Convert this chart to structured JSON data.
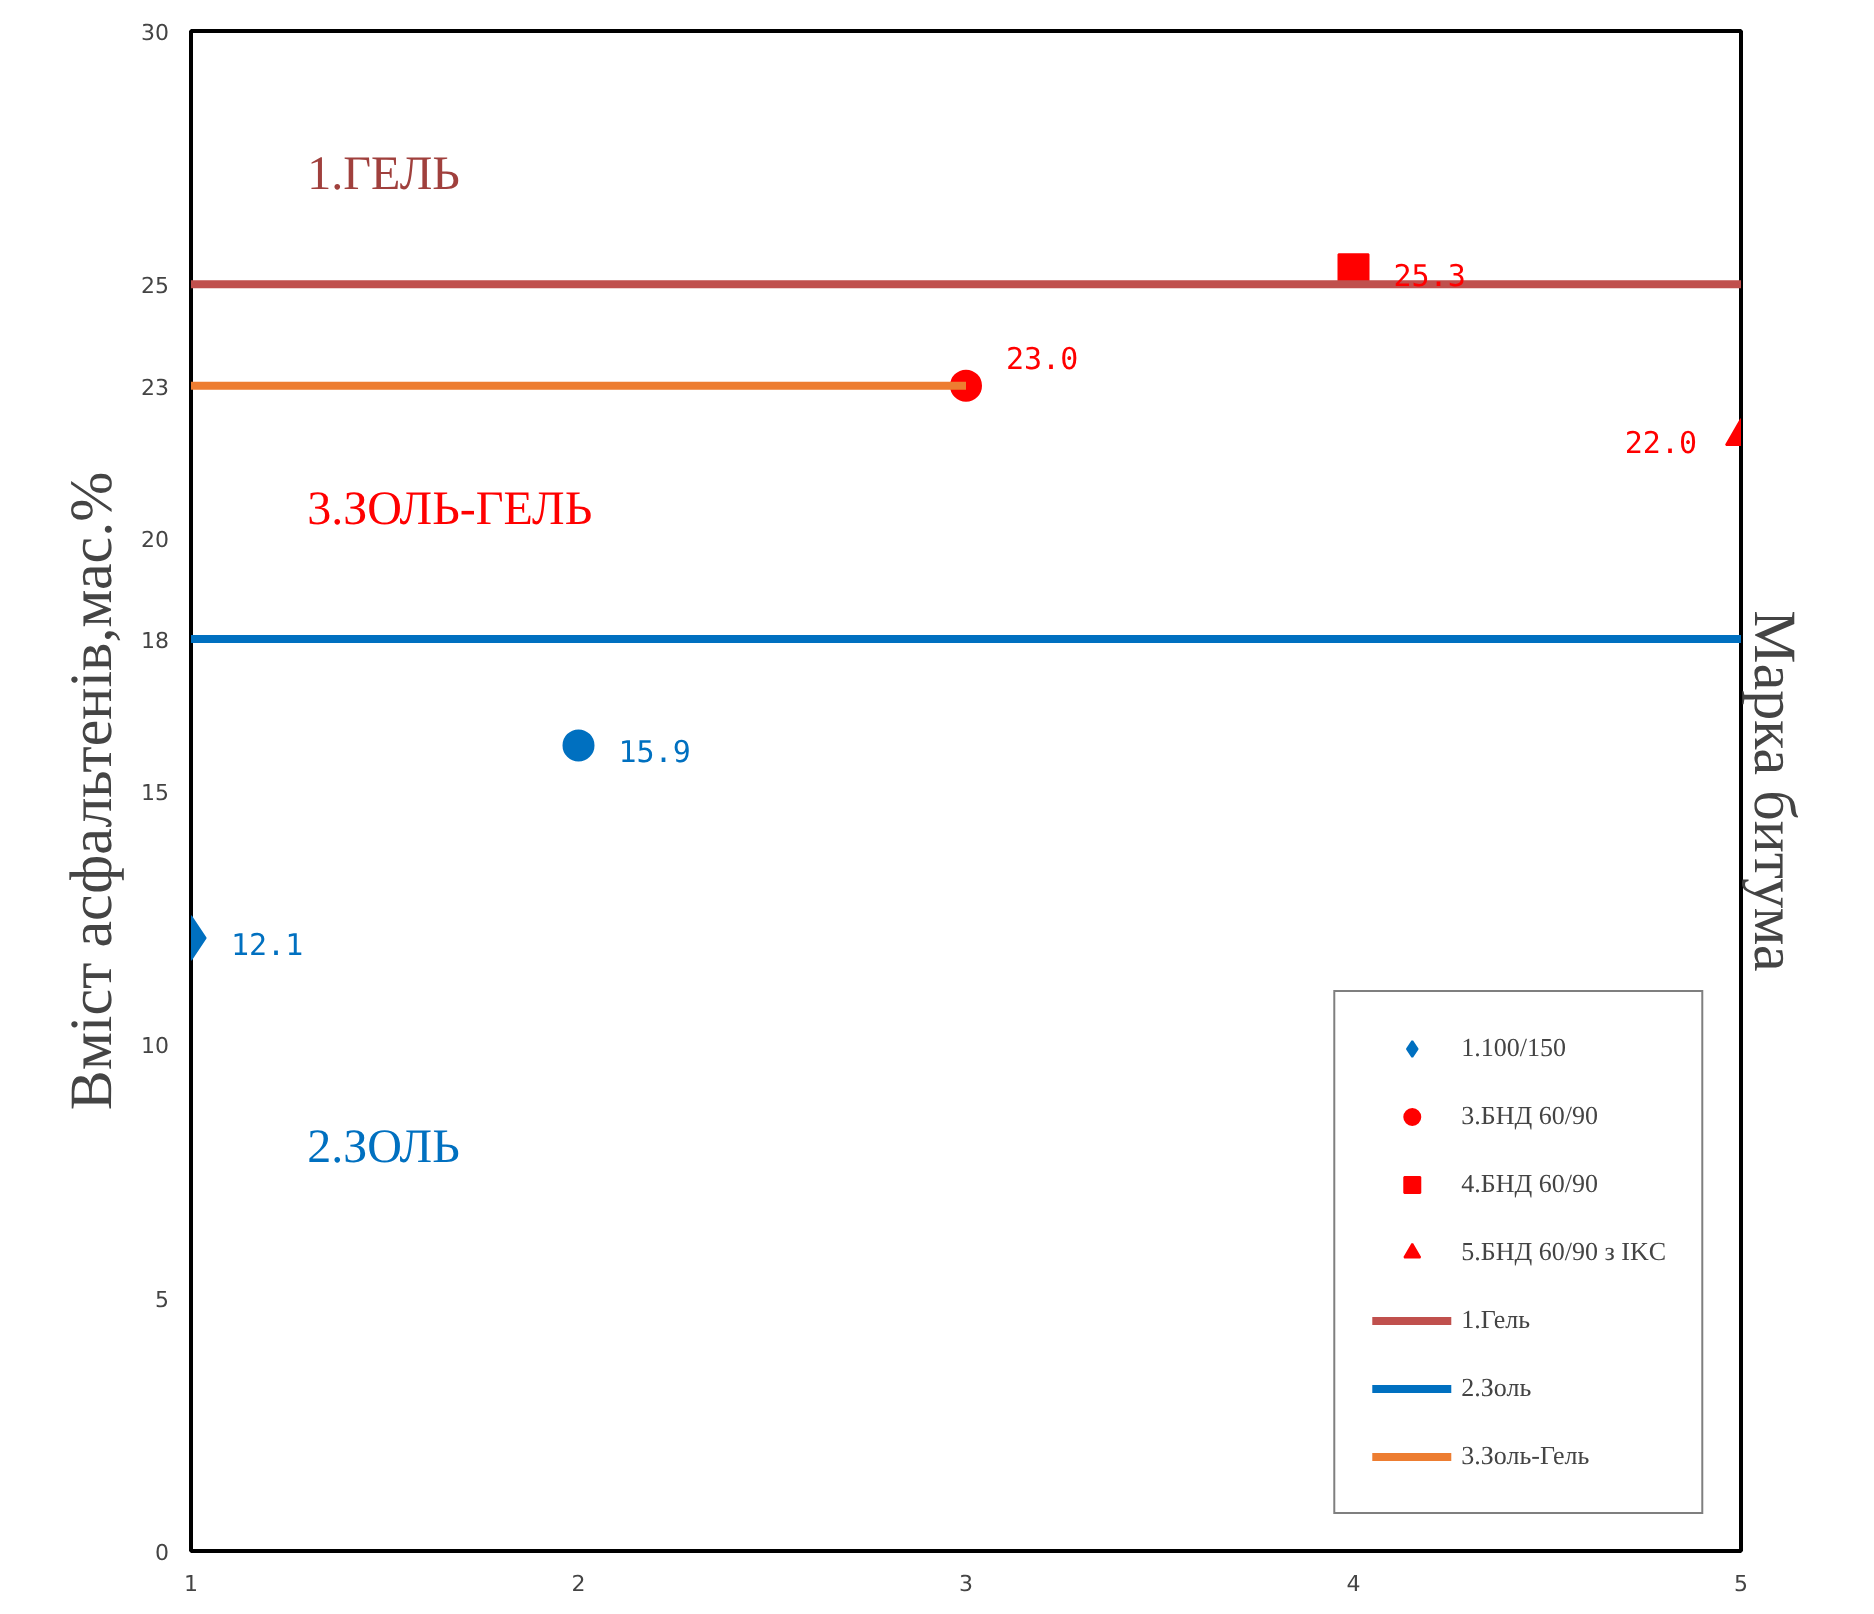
{
  "chart_data": {
    "type": "scatter",
    "ylabel": "Вміст асфальтенів,мас.%",
    "y2label": "Марка битума",
    "xlim": [
      1,
      5
    ],
    "ylim": [
      0,
      30
    ],
    "xticks": [
      1,
      2,
      3,
      4,
      5
    ],
    "yticks": [
      0,
      5,
      10,
      15,
      {
        "value": 18,
        "label": "18"
      },
      20,
      {
        "value": 23,
        "label": "23"
      },
      25,
      30
    ],
    "grid": false,
    "legend": "bottom right",
    "annotations": [
      "1.ГЕЛЬ",
      "3.ЗОЛЬ-ГЕЛЬ",
      "2.ЗОЛЬ"
    ],
    "series": [
      {
        "name": "1.100/150",
        "marker": "diamond",
        "color": "#0070c0",
        "x": [
          1
        ],
        "values": [
          12.1
        ],
        "value_labels": [
          "12.1"
        ]
      },
      {
        "marker": "circle",
        "color": "#0070c0",
        "x": [
          2
        ],
        "values": [
          15.9
        ],
        "value_labels": [
          "15.9"
        ]
      },
      {
        "name": "3.БНД 60/90",
        "marker": "circle",
        "color": "#ff0000",
        "x": [
          3
        ],
        "values": [
          23.0
        ],
        "value_labels": [
          "23.0"
        ]
      },
      {
        "name": "4.БНД 60/90",
        "marker": "square",
        "color": "#ff0000",
        "x": [
          4
        ],
        "values": [
          25.3
        ],
        "value_labels": [
          "25.3"
        ]
      },
      {
        "name": "5.БНД 60/90 з IKC",
        "marker": "triangle",
        "color": "#ff0000",
        "x": [
          5
        ],
        "values": [
          22.0
        ],
        "value_labels": [
          "22.0"
        ]
      },
      {
        "name": "1.Гель",
        "type": "line",
        "color": "#c0504d",
        "x": [
          1,
          5
        ],
        "values": [
          25,
          25
        ]
      },
      {
        "name": "2.Золь",
        "type": "line",
        "color": "#0070c0",
        "x": [
          1,
          5
        ],
        "values": [
          18,
          18
        ]
      },
      {
        "name": "3.Золь-Гель",
        "type": "line",
        "color": "#ed7d31",
        "x": [
          1,
          3
        ],
        "values": [
          23,
          23
        ]
      }
    ]
  }
}
